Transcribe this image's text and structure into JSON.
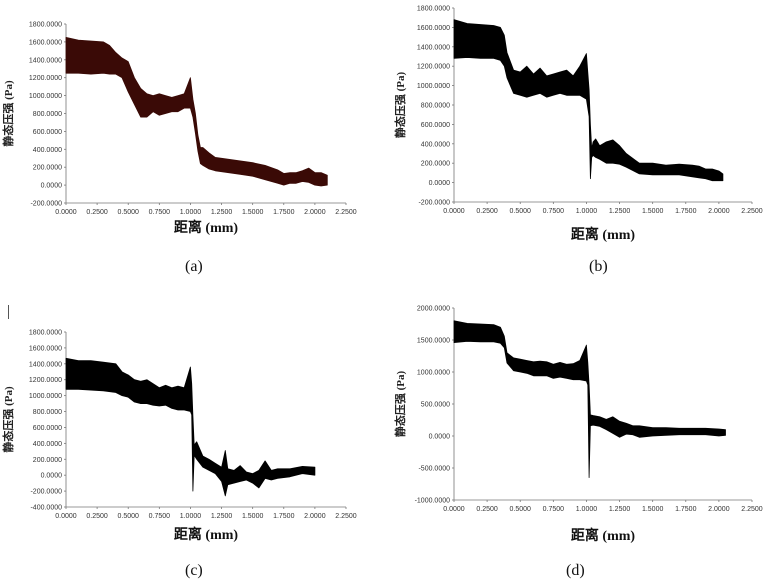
{
  "captions": [
    "(a)",
    "(b)",
    "(c)",
    "(d)"
  ],
  "chart_data": [
    {
      "type": "area",
      "id": "a",
      "xlabel": "距离 (mm)",
      "ylabel": "静态压强 (Pa)",
      "xlim": [
        0,
        2.25
      ],
      "ylim": [
        -200,
        1800
      ],
      "xticks": [
        "0.0000",
        "0.2500",
        "0.5000",
        "0.7500",
        "1.0000",
        "1.2500",
        "1.5000",
        "1.7500",
        "2.0000",
        "2.2500"
      ],
      "yticks": [
        "-200.0000",
        "0.0000",
        "200.0000",
        "400.0000",
        "600.0000",
        "800.0000",
        "1000.0000",
        "1200.0000",
        "1400.0000",
        "1600.0000",
        "1800.0000"
      ],
      "fill_color": "#3a0a06",
      "x": [
        0,
        0.1,
        0.2,
        0.3,
        0.35,
        0.4,
        0.45,
        0.5,
        0.55,
        0.6,
        0.65,
        0.7,
        0.75,
        0.8,
        0.85,
        0.9,
        0.95,
        1.0,
        1.02,
        1.04,
        1.06,
        1.08,
        1.1,
        1.15,
        1.2,
        1.25,
        1.3,
        1.4,
        1.5,
        1.6,
        1.7,
        1.75,
        1.8,
        1.85,
        1.9,
        1.95,
        2.0,
        2.05,
        2.1
      ],
      "upper": [
        1650,
        1620,
        1610,
        1600,
        1560,
        1480,
        1420,
        1380,
        1200,
        1080,
        1020,
        1000,
        1020,
        1000,
        980,
        1000,
        1020,
        1200,
        960,
        800,
        560,
        420,
        420,
        360,
        310,
        300,
        290,
        270,
        250,
        220,
        170,
        130,
        140,
        140,
        160,
        190,
        140,
        140,
        110
      ],
      "lower": [
        1250,
        1250,
        1240,
        1250,
        1240,
        1240,
        1200,
        1040,
        900,
        760,
        760,
        820,
        780,
        800,
        820,
        820,
        860,
        860,
        760,
        580,
        380,
        240,
        220,
        180,
        160,
        150,
        140,
        120,
        100,
        60,
        20,
        0,
        20,
        20,
        40,
        30,
        0,
        -10,
        0
      ]
    },
    {
      "type": "area",
      "id": "b",
      "xlabel": "距离 (mm)",
      "ylabel": "静态压强 (Pa)",
      "xlim": [
        0,
        2.25
      ],
      "ylim": [
        -200,
        1800
      ],
      "xticks": [
        "0.0000",
        "0.2500",
        "0.5000",
        "0.7500",
        "1.0000",
        "1.2500",
        "1.5000",
        "1.7500",
        "2.0000",
        "2.2500"
      ],
      "yticks": [
        "-200.0000",
        "0.0000",
        "200.0000",
        "400.0000",
        "600.0000",
        "800.0000",
        "1000.0000",
        "1200.0000",
        "1400.0000",
        "1600.0000",
        "1800.0000"
      ],
      "fill_color": "#000000",
      "x": [
        0,
        0.1,
        0.2,
        0.3,
        0.35,
        0.38,
        0.4,
        0.45,
        0.5,
        0.55,
        0.6,
        0.65,
        0.7,
        0.75,
        0.8,
        0.85,
        0.9,
        0.95,
        1.0,
        1.02,
        1.03,
        1.04,
        1.05,
        1.07,
        1.1,
        1.15,
        1.2,
        1.25,
        1.3,
        1.4,
        1.5,
        1.6,
        1.7,
        1.8,
        1.85,
        1.9,
        1.95,
        2.0,
        2.03
      ],
      "upper": [
        1680,
        1640,
        1630,
        1620,
        1600,
        1520,
        1340,
        1160,
        1140,
        1200,
        1120,
        1180,
        1100,
        1120,
        1140,
        1160,
        1100,
        1200,
        1330,
        960,
        600,
        350,
        420,
        450,
        380,
        420,
        440,
        380,
        300,
        200,
        200,
        180,
        190,
        180,
        170,
        140,
        140,
        120,
        90
      ],
      "lower": [
        1280,
        1290,
        1280,
        1280,
        1260,
        1200,
        1080,
        920,
        900,
        880,
        900,
        920,
        880,
        900,
        920,
        900,
        900,
        900,
        860,
        680,
        40,
        260,
        280,
        260,
        240,
        200,
        200,
        190,
        160,
        90,
        80,
        80,
        80,
        60,
        50,
        40,
        20,
        20,
        20
      ]
    },
    {
      "type": "area",
      "id": "c",
      "xlabel": "距离 (mm)",
      "ylabel": "静态压强 (Pa)",
      "xlim": [
        0,
        2.25
      ],
      "ylim": [
        -400,
        1800
      ],
      "xticks": [
        "0.0000",
        "0.2500",
        "0.5000",
        "0.7500",
        "1.0000",
        "1.2500",
        "1.5000",
        "1.7500",
        "2.0000",
        "2.2500"
      ],
      "yticks": [
        "-400.0000",
        "-200.0000",
        "0.0000",
        "200.0000",
        "400.0000",
        "600.0000",
        "800.0000",
        "1000.0000",
        "1200.0000",
        "1400.0000",
        "1600.0000",
        "1800.0000"
      ],
      "fill_color": "#000000",
      "x": [
        0,
        0.1,
        0.2,
        0.3,
        0.4,
        0.45,
        0.5,
        0.55,
        0.6,
        0.65,
        0.7,
        0.75,
        0.8,
        0.85,
        0.9,
        0.95,
        1.0,
        1.01,
        1.02,
        1.03,
        1.05,
        1.1,
        1.15,
        1.2,
        1.25,
        1.28,
        1.3,
        1.35,
        1.4,
        1.45,
        1.5,
        1.55,
        1.6,
        1.65,
        1.7,
        1.8,
        1.9,
        2.0
      ],
      "upper": [
        1470,
        1440,
        1440,
        1420,
        1400,
        1300,
        1260,
        1200,
        1180,
        1200,
        1150,
        1100,
        1130,
        1100,
        1120,
        1100,
        1360,
        1150,
        750,
        380,
        420,
        240,
        200,
        150,
        100,
        310,
        80,
        60,
        120,
        40,
        20,
        60,
        180,
        60,
        80,
        80,
        110,
        100
      ],
      "lower": [
        1080,
        1080,
        1070,
        1060,
        1040,
        1000,
        980,
        920,
        900,
        900,
        880,
        870,
        880,
        840,
        820,
        820,
        800,
        760,
        -200,
        250,
        200,
        100,
        60,
        20,
        -80,
        -260,
        -120,
        -100,
        -80,
        -60,
        -100,
        -160,
        -40,
        -60,
        -40,
        -20,
        20,
        0
      ]
    },
    {
      "type": "area",
      "id": "d",
      "xlabel": "距离 (mm)",
      "ylabel": "静态压强 (Pa)",
      "xlim": [
        0,
        2.25
      ],
      "ylim": [
        -1000,
        2000
      ],
      "xticks": [
        "0.0000",
        "0.2500",
        "0.5000",
        "0.7500",
        "1.0000",
        "1.2500",
        "1.5000",
        "1.7500",
        "2.0000",
        "2.2500"
      ],
      "yticks": [
        "-1000.0000",
        "-500.0000",
        "0.0000",
        "500.0000",
        "1000.0000",
        "1500.0000",
        "2000.0000"
      ],
      "fill_color": "#000000",
      "x": [
        0,
        0.1,
        0.2,
        0.3,
        0.35,
        0.38,
        0.4,
        0.45,
        0.5,
        0.55,
        0.6,
        0.65,
        0.7,
        0.75,
        0.8,
        0.85,
        0.9,
        0.95,
        1.0,
        1.01,
        1.02,
        1.03,
        1.05,
        1.1,
        1.15,
        1.2,
        1.25,
        1.3,
        1.35,
        1.4,
        1.5,
        1.6,
        1.7,
        1.8,
        1.9,
        2.0,
        2.05
      ],
      "upper": [
        1800,
        1760,
        1750,
        1740,
        1700,
        1560,
        1300,
        1220,
        1200,
        1180,
        1160,
        1170,
        1160,
        1120,
        1150,
        1120,
        1130,
        1180,
        1420,
        1150,
        800,
        330,
        320,
        300,
        260,
        300,
        230,
        200,
        160,
        160,
        130,
        130,
        120,
        120,
        120,
        110,
        100
      ],
      "lower": [
        1460,
        1480,
        1470,
        1470,
        1450,
        1380,
        1140,
        1020,
        1000,
        980,
        940,
        940,
        940,
        900,
        920,
        900,
        880,
        880,
        860,
        800,
        -650,
        160,
        170,
        150,
        100,
        40,
        -20,
        30,
        20,
        -20,
        0,
        10,
        20,
        20,
        20,
        0,
        10
      ]
    }
  ]
}
